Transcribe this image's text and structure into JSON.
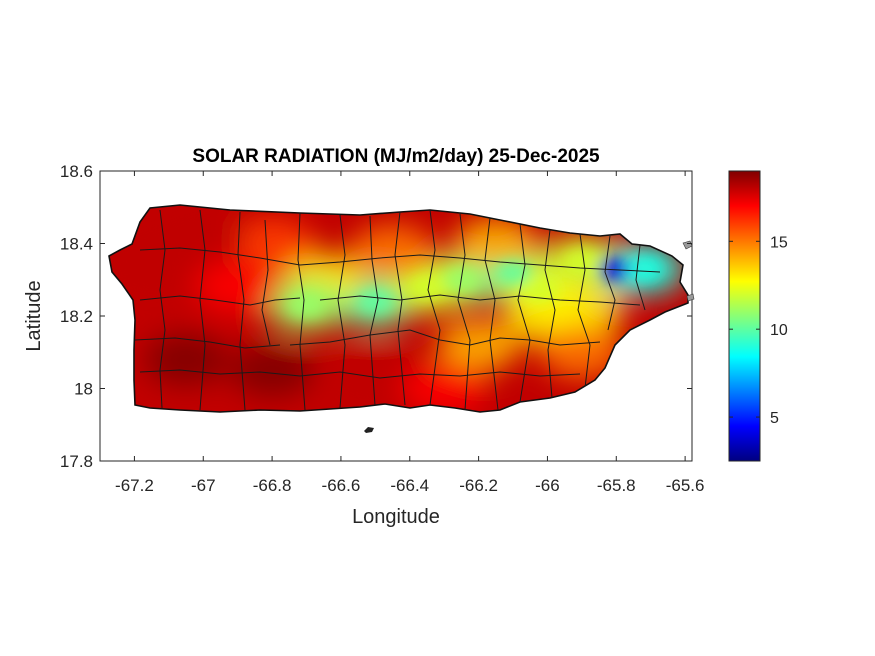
{
  "title": "SOLAR RADIATION (MJ/m2/day) 25-Dec-2025",
  "xlabel": "Longitude",
  "ylabel": "Latitude",
  "x_ticks": [
    "-67.2",
    "-67",
    "-66.8",
    "-66.6",
    "-66.4",
    "-66.2",
    "-66",
    "-65.8",
    "-65.6"
  ],
  "y_ticks": [
    "18.6",
    "18.4",
    "18.2",
    "18",
    "17.8"
  ],
  "colorbar": {
    "ticks": [
      "15",
      "10",
      "5"
    ],
    "colormap": "jet",
    "colors": [
      "#000080",
      "#0000ff",
      "#00ffff",
      "#ffff00",
      "#ff0000",
      "#800000"
    ]
  },
  "chart_data": {
    "type": "heatmap",
    "title": "SOLAR RADIATION (MJ/m2/day) 25-Dec-2025",
    "xlabel": "Longitude",
    "ylabel": "Latitude",
    "xlim": [
      -67.3,
      -65.58
    ],
    "ylim": [
      17.8,
      18.6
    ],
    "x_ticks": [
      -67.2,
      -67,
      -66.8,
      -66.6,
      -66.4,
      -66.2,
      -66,
      -65.8,
      -65.6
    ],
    "y_ticks": [
      18.6,
      18.4,
      18.2,
      18,
      17.8
    ],
    "color_range": [
      2.5,
      19
    ],
    "colorbar_ticks": [
      15,
      10,
      5
    ],
    "hotspots": [
      {
        "lon": -65.8,
        "lat": 18.33,
        "value": 4
      },
      {
        "lon": -65.72,
        "lat": 18.33,
        "value": 9
      },
      {
        "lon": -66.5,
        "lat": 18.24,
        "value": 10
      },
      {
        "lon": -66.25,
        "lat": 18.3,
        "value": 11
      },
      {
        "lon": -66.1,
        "lat": 18.32,
        "value": 10
      },
      {
        "lon": -66.02,
        "lat": 18.27,
        "value": 12
      },
      {
        "lon": -65.9,
        "lat": 18.35,
        "value": 12
      },
      {
        "lon": -66.35,
        "lat": 18.28,
        "value": 12
      },
      {
        "lon": -66.65,
        "lat": 18.3,
        "value": 13
      },
      {
        "lon": -66.7,
        "lat": 18.23,
        "value": 11
      },
      {
        "lon": -66.0,
        "lat": 18.2,
        "value": 13
      },
      {
        "lon": -65.9,
        "lat": 18.22,
        "value": 13
      },
      {
        "lon": -66.15,
        "lat": 18.4,
        "value": 14
      },
      {
        "lon": -66.45,
        "lat": 18.38,
        "value": 15
      },
      {
        "lon": -66.8,
        "lat": 18.4,
        "value": 16
      },
      {
        "lon": -66.2,
        "lat": 18.12,
        "value": 14
      },
      {
        "lon": -65.9,
        "lat": 18.1,
        "value": 15
      },
      {
        "lon": -67.05,
        "lat": 18.08,
        "value": 19
      },
      {
        "lon": -66.8,
        "lat": 18.05,
        "value": 19
      },
      {
        "lon": -66.5,
        "lat": 18.05,
        "value": 18
      },
      {
        "lon": -66.3,
        "lat": 18.0,
        "value": 17
      },
      {
        "lon": -67.15,
        "lat": 18.35,
        "value": 18
      },
      {
        "lon": -67.0,
        "lat": 18.4,
        "value": 18
      },
      {
        "lon": -66.9,
        "lat": 18.28,
        "value": 17
      }
    ]
  }
}
